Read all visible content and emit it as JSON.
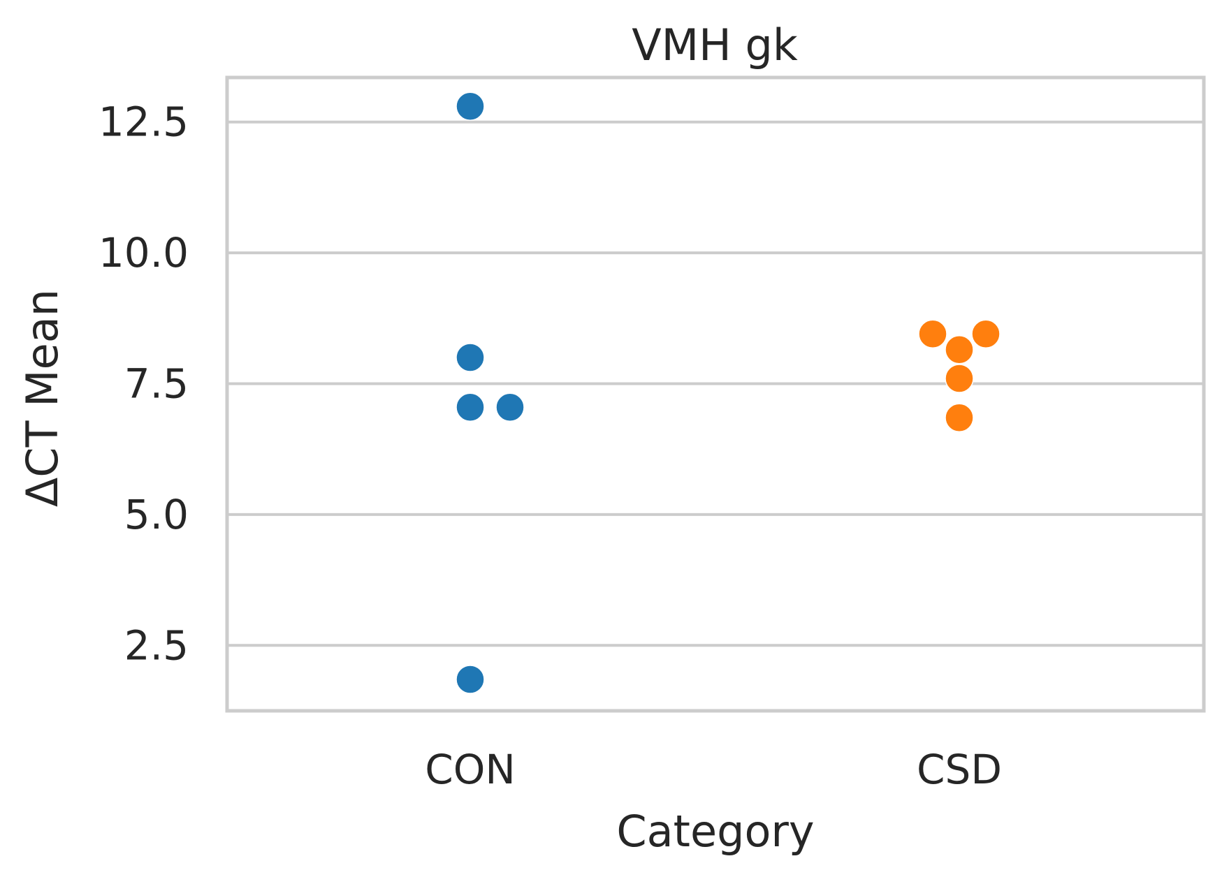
{
  "chart_data": {
    "type": "scatter",
    "title": "VMH gk",
    "xlabel": "Category",
    "ylabel": "ΔCT Mean",
    "categories": [
      "CON",
      "CSD"
    ],
    "ylim": [
      1.25,
      13.35
    ],
    "yticks": [
      "2.5",
      "5.0",
      "7.5",
      "10.0",
      "12.5"
    ],
    "grid": "horizontal",
    "series": [
      {
        "category": "CON",
        "color": "#1f77b4",
        "values": [
          12.8,
          8.0,
          7.05,
          7.05,
          1.85
        ]
      },
      {
        "category": "CSD",
        "color": "#ff7f0e",
        "values": [
          8.45,
          8.45,
          8.15,
          7.6,
          6.85
        ]
      }
    ]
  }
}
